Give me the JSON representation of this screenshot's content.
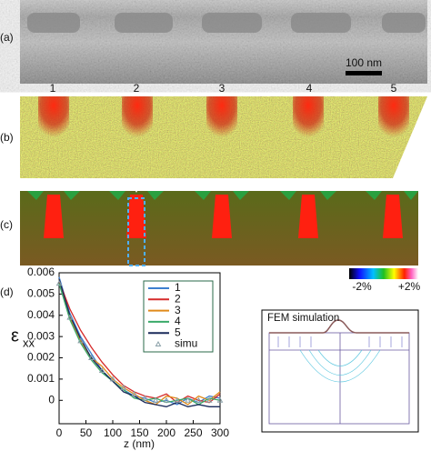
{
  "panel_labels": [
    "(a)",
    "(b)",
    "(c)",
    "(d)"
  ],
  "scale_bar": "100 nm",
  "column_labels": [
    "1",
    "2",
    "3",
    "4",
    "5"
  ],
  "colorbar": {
    "min_label": "-2%",
    "max_label": "+2%"
  },
  "inset": {
    "title": "FEM simulation"
  },
  "chart_data": {
    "type": "line",
    "x_label": "z (nm)",
    "y_label": {
      "symbol": "ε",
      "subscript": "xx"
    },
    "x": [
      0,
      20,
      40,
      60,
      80,
      100,
      120,
      140,
      160,
      180,
      200,
      220,
      240,
      260,
      280,
      300
    ],
    "series": [
      {
        "name": "1",
        "color": "#3d7fd0",
        "values": [
          0.0058,
          0.0041,
          0.003,
          0.0022,
          0.0014,
          0.0009,
          0.0005,
          0.0002,
          0.0001,
          -0.0001,
          0,
          -0.0002,
          0.0001,
          -0.0001,
          0.0002,
          0.0001
        ]
      },
      {
        "name": "2",
        "color": "#d62a2a",
        "values": [
          0.0056,
          0.0043,
          0.0033,
          0.0025,
          0.0018,
          0.0012,
          0.0007,
          0.0004,
          0.0002,
          0.0001,
          0.0003,
          -0.0001,
          0.0002,
          0,
          -0.0001,
          0.0003
        ]
      },
      {
        "name": "3",
        "color": "#e08a1a",
        "values": [
          0.0057,
          0.0039,
          0.0028,
          0.002,
          0.0016,
          0.001,
          0.0006,
          0.0003,
          0,
          -0.0002,
          0.0002,
          0.0001,
          -0.0002,
          0.0002,
          0,
          0.0004
        ]
      },
      {
        "name": "4",
        "color": "#3aaa6a",
        "values": [
          0.0055,
          0.0038,
          0.0027,
          0.0019,
          0.0013,
          0.0009,
          0.0005,
          0.0001,
          0,
          0.0001,
          -0.0001,
          0,
          0.0001,
          -0.0002,
          0.0001,
          0
        ]
      },
      {
        "name": "5",
        "color": "#1a2a5a",
        "values": [
          0.0057,
          0.004,
          0.0029,
          0.002,
          0.0014,
          0.0009,
          0.0004,
          0.0002,
          -0.0001,
          -0.0002,
          -0.0003,
          -0.0001,
          -0.0003,
          -0.0002,
          -0.0003,
          -0.0003
        ]
      },
      {
        "name": "simu",
        "color": "#8aa0a8",
        "marker": "triangle",
        "values": [
          0.0055,
          0.0039,
          0.0028,
          0.002,
          0.0014,
          0.001,
          0.0006,
          0.0003,
          0.0001,
          0,
          0,
          0,
          0,
          0,
          0,
          0
        ]
      }
    ],
    "xlim": [
      0,
      300
    ],
    "ylim": [
      -0.0011,
      0.006
    ],
    "xticks": [
      0,
      50,
      100,
      150,
      200,
      250,
      300
    ],
    "yticks": [
      0,
      0.001,
      0.002,
      0.003,
      0.004,
      0.005,
      0.006
    ]
  }
}
